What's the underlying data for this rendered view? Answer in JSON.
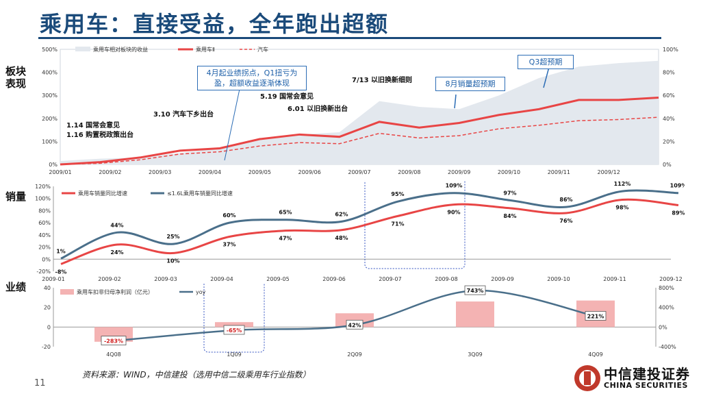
{
  "page": {
    "title": "乘用车：直接受益，全年跑出超额",
    "side_labels": {
      "panel1": "板块\n表现",
      "panel2": "销量",
      "panel3": "业绩"
    },
    "source": "资料来源：WIND，中信建投（选用中信二级乘用车行业指数）",
    "page_number": "11",
    "logo_cn": "中信建投证券",
    "logo_en": "CHINA SECURITIES"
  },
  "colors": {
    "title": "#1a4a7a",
    "red": "#e84545",
    "blue": "#4a6f8a",
    "area": "#e3e8ee",
    "bar": "#f4b3b3",
    "callout": "#2b6cb5"
  },
  "chart_data": [
    {
      "type": "line",
      "legend": [
        "乘用车相对板块的收益",
        "乘用车Ⅱ",
        "汽车"
      ],
      "x_ticks": [
        "2009/01",
        "2009/02",
        "2009/03",
        "2009/04",
        "2009/05",
        "2009/06",
        "2009/07",
        "2009/08",
        "2009/09",
        "2009/10",
        "2009/11",
        "2009/12"
      ],
      "y_left_ticks": [
        "0%",
        "100%",
        "200%",
        "300%",
        "400%",
        "500%"
      ],
      "y_right_ticks": [
        "0%",
        "20%",
        "40%",
        "60%",
        "80%",
        "100%"
      ],
      "ylim_left": [
        0,
        500
      ],
      "ylim_right": [
        0,
        100
      ],
      "series": [
        {
          "name": "乘用车Ⅱ",
          "axis": "left",
          "style": "solid",
          "values": [
            0,
            10,
            30,
            60,
            70,
            110,
            130,
            120,
            185,
            160,
            180,
            215,
            240,
            280,
            280,
            290
          ]
        },
        {
          "name": "汽车",
          "axis": "left",
          "style": "dashed",
          "values": [
            0,
            5,
            20,
            45,
            55,
            80,
            95,
            90,
            135,
            115,
            125,
            155,
            170,
            190,
            195,
            205
          ]
        },
        {
          "name": "乘用车相对板块的收益",
          "axis": "right",
          "style": "area",
          "values": [
            3,
            5,
            6,
            10,
            14,
            22,
            26,
            28,
            55,
            50,
            48,
            60,
            75,
            85,
            88,
            90
          ]
        }
      ],
      "annotations": [
        "1.14 国常会意见",
        "1.16 购置税政策出台",
        "3.10 汽车下乡出台",
        "5.19 国常会意见",
        "6.01 以旧换新出台",
        "7/13 以旧换新细则"
      ],
      "callouts": [
        "4月起业绩拐点，Q1扭亏为盈，超额收益逐渐体现",
        "8月销量超预期",
        "Q3超预期"
      ]
    },
    {
      "type": "line",
      "legend": [
        "乘用车销量同比增速",
        "≤1.6L乘用车销量同比增速"
      ],
      "x_ticks": [
        "2009-01",
        "2009-02",
        "2009-03",
        "2009-04",
        "2009-05",
        "2009-06",
        "2009-07",
        "2009-08",
        "2009-09",
        "2009-10",
        "2009-11",
        "2009-12"
      ],
      "y_ticks": [
        "-20%",
        "0%",
        "20%",
        "40%",
        "60%",
        "80%",
        "100%",
        "120%"
      ],
      "ylim": [
        -20,
        120
      ],
      "series": [
        {
          "name": "乘用车销量同比增速",
          "values": [
            -8,
            24,
            10,
            37,
            47,
            48,
            71,
            90,
            84,
            76,
            98,
            89
          ],
          "labels": [
            "-8%",
            "24%",
            "10%",
            "37%",
            "47%",
            "48%",
            "71%",
            "90%",
            "84%",
            "76%",
            "98%",
            "89%"
          ]
        },
        {
          "name": "≤1.6L乘用车销量同比增速",
          "values": [
            1,
            44,
            25,
            60,
            65,
            62,
            95,
            109,
            97,
            86,
            112,
            109
          ],
          "labels": [
            "1%",
            "44%",
            "25%",
            "60%",
            "65%",
            "62%",
            "95%",
            "109%",
            "97%",
            "86%",
            "112%",
            "109%"
          ]
        }
      ]
    },
    {
      "type": "bar",
      "legend": [
        "乘用车扣非归母净利润（亿元）",
        "yoy"
      ],
      "categories": [
        "4Q08",
        "1Q09",
        "2Q09",
        "3Q09",
        "4Q09"
      ],
      "y_left_ticks": [
        "-20",
        "0",
        "20",
        "40"
      ],
      "y_right_ticks": [
        "-400%",
        "0%",
        "400%",
        "800%"
      ],
      "ylim_left": [
        -20,
        40
      ],
      "ylim_right": [
        -400,
        800
      ],
      "series": [
        {
          "name": "乘用车扣非归母净利润（亿元）",
          "type": "bar",
          "values": [
            -15,
            5,
            14,
            26,
            27
          ]
        },
        {
          "name": "yoy",
          "type": "line",
          "values": [
            -283,
            -65,
            42,
            743,
            221
          ],
          "labels": [
            "-283%",
            "-65%",
            "42%",
            "743%",
            "221%"
          ]
        }
      ]
    }
  ]
}
